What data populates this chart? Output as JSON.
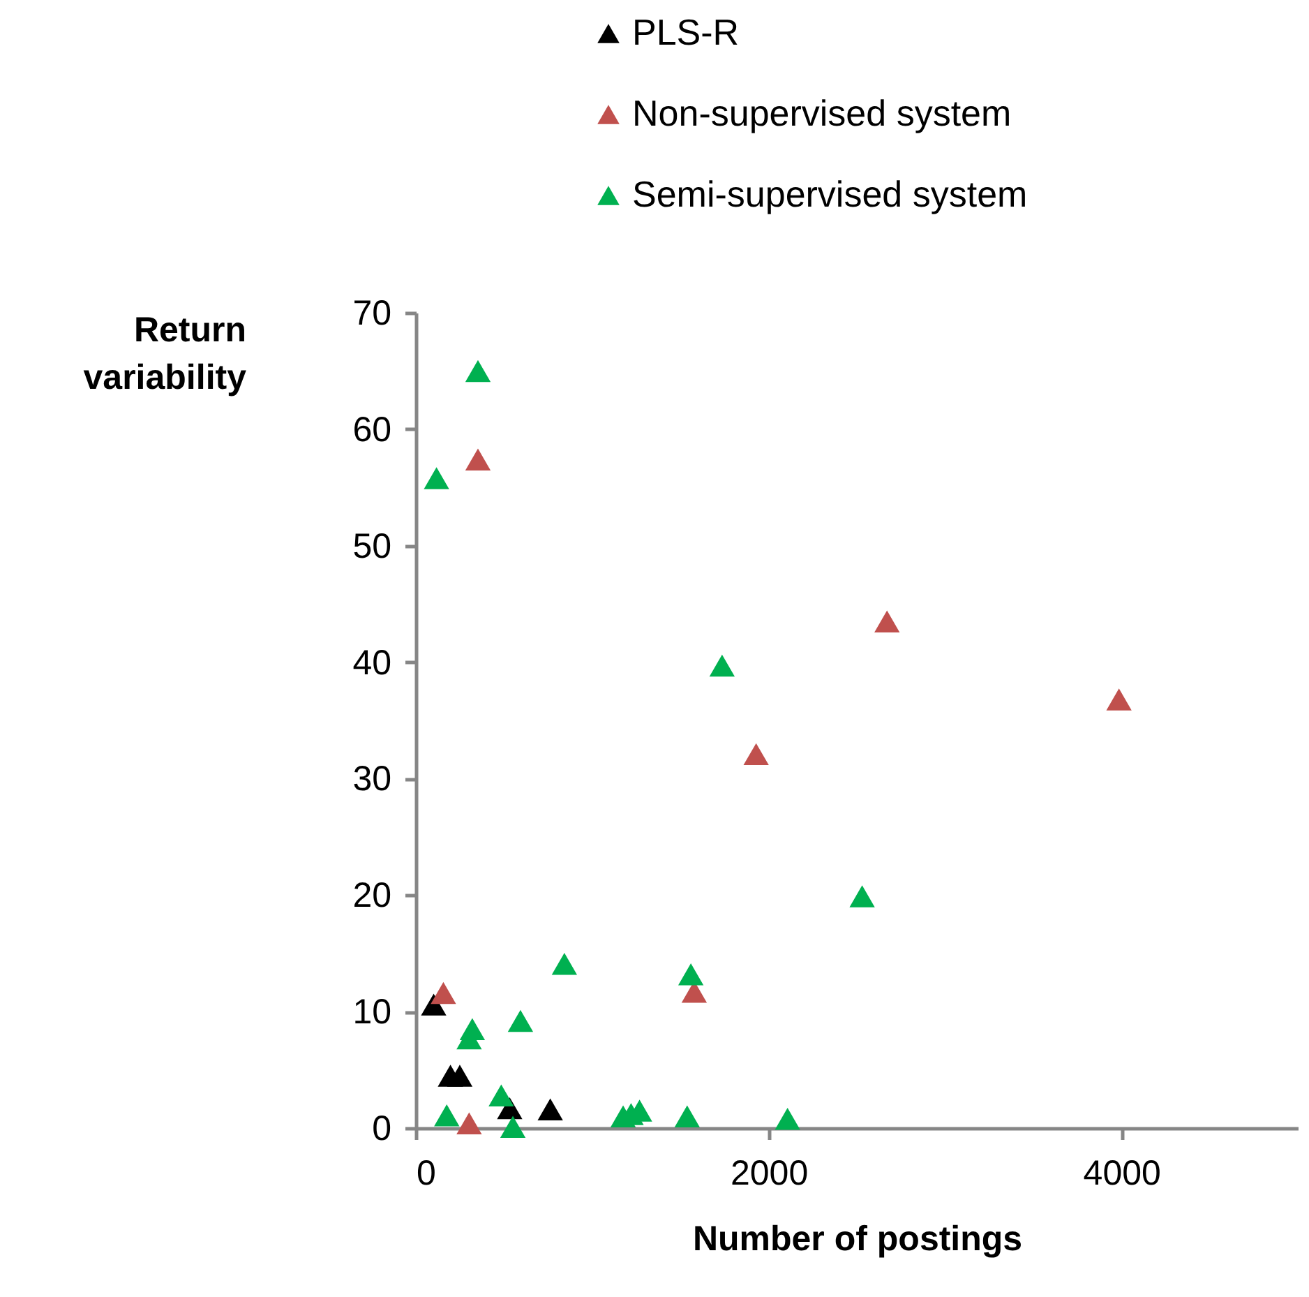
{
  "chart_data": {
    "type": "scatter",
    "xlabel": "Number of postings",
    "ylabel": "Return variability",
    "xlim": [
      0,
      5000
    ],
    "xticks": [
      0,
      2000,
      4000
    ],
    "ylim": [
      0,
      70
    ],
    "yticks": [
      0,
      10,
      20,
      30,
      40,
      50,
      60,
      70
    ],
    "grid": false,
    "legend": "top",
    "marker": "triangle",
    "series": [
      {
        "name": "PLS-R",
        "color": "#000000",
        "x": [
          101,
          196,
          249,
          532,
          762
        ],
        "values": [
          10.6,
          4.5,
          4.5,
          1.7,
          1.6
        ]
      },
      {
        "name": "Non-supervised system",
        "color": "#c0504d",
        "x": [
          352,
          156,
          302,
          1578,
          1929,
          2671,
          3986
        ],
        "values": [
          57.4,
          11.6,
          0.4,
          11.7,
          32.1,
          43.5,
          36.8
        ]
      },
      {
        "name": "Semi-supervised system",
        "color": "#00b050",
        "x": [
          352,
          117,
          1736,
          2530,
          1559,
          842,
          320,
          302,
          593,
          484,
          175,
          550,
          1175,
          1220,
          1268,
          1538,
          2107
        ],
        "values": [
          65.0,
          55.8,
          39.7,
          19.9,
          13.2,
          14.1,
          8.5,
          7.7,
          9.2,
          2.8,
          1.1,
          0.1,
          1.0,
          1.2,
          1.5,
          1.0,
          0.8
        ]
      }
    ]
  }
}
